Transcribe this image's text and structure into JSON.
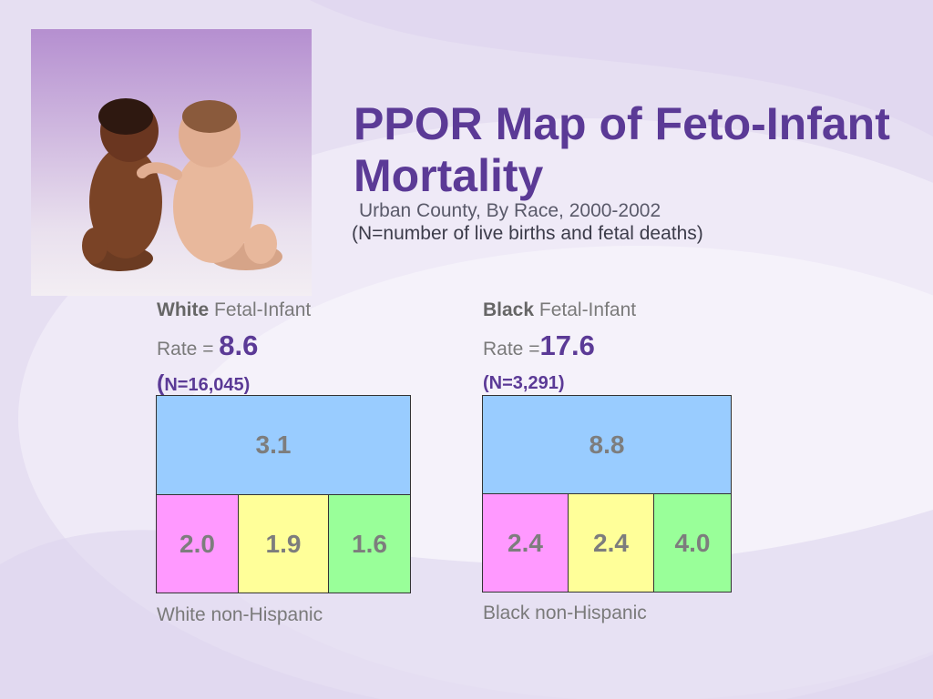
{
  "header": {
    "title": "PPOR Map of Feto-Infant Mortality",
    "subtitle_line1": "Urban County,  By Race, 2000-2002",
    "subtitle_line2": "(N=number of live births and fetal deaths)"
  },
  "groups": [
    {
      "race": "White",
      "head_rest": " Fetal-Infant",
      "rate_prefix": "Rate = ",
      "rate": "8.6",
      "n_open": "(",
      "n_text": "N=16,045)",
      "top_value": "3.1",
      "bottom_values": [
        "2.0",
        "1.9",
        "1.6"
      ],
      "footer": "White non-Hispanic"
    },
    {
      "race": "Black",
      "head_rest": " Fetal-Infant",
      "rate_prefix": "Rate =",
      "rate": "17.6",
      "n_open": "",
      "n_text": "(N=3,291)",
      "top_value": "8.8",
      "bottom_values": [
        "2.4",
        "2.4",
        "4.0"
      ],
      "footer": "Black non-Hispanic"
    }
  ],
  "colors": {
    "title": "#5b3a96",
    "top_cell": "#99ccff",
    "cell_1": "#ff99ff",
    "cell_2": "#ffff99",
    "cell_3": "#99ff99"
  }
}
